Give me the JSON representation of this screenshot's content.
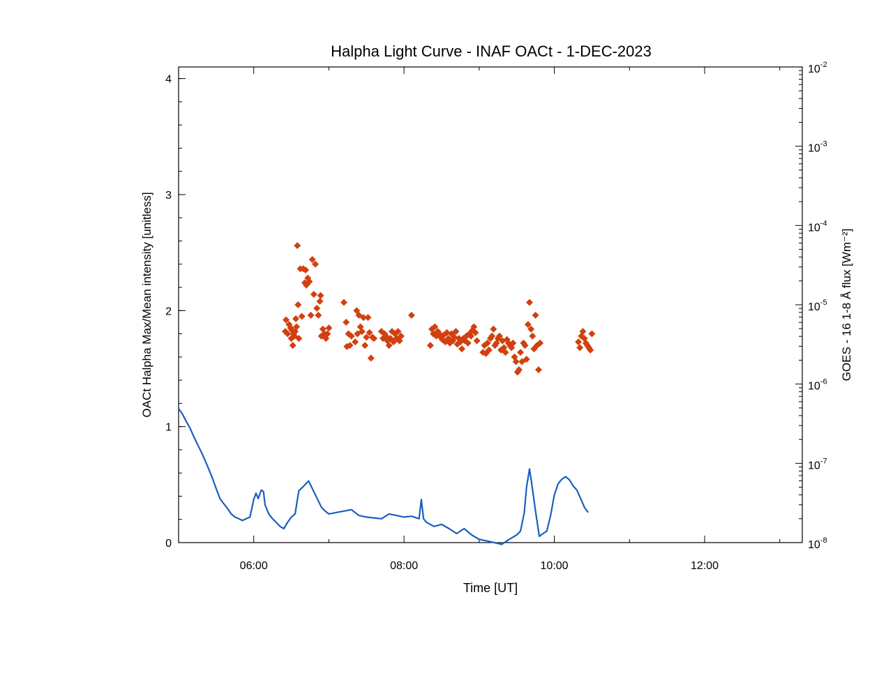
{
  "chart_data": {
    "type": "scatter",
    "title": "Halpha Light Curve - INAF OACt -  1-DEC-2023",
    "xlabel": "Time [UT]",
    "ylabel": "OACt Halpha Max/Mean intensity [unitless]",
    "y2label": "GOES - 16 1-8 Å flux [Wm⁻²]",
    "xlim": [
      5.0,
      13.3
    ],
    "ylim": [
      0,
      4.1
    ],
    "y2lim": [
      1e-08,
      0.01
    ],
    "y2scale": "log",
    "grid": false,
    "x_ticks": [
      {
        "value": 6,
        "label": "06:00"
      },
      {
        "value": 8,
        "label": "08:00"
      },
      {
        "value": 10,
        "label": "10:00"
      },
      {
        "value": 12,
        "label": "12:00"
      }
    ],
    "y_ticks": [
      {
        "value": 0,
        "label": "0"
      },
      {
        "value": 1,
        "label": "1"
      },
      {
        "value": 2,
        "label": "2"
      },
      {
        "value": 3,
        "label": "3"
      },
      {
        "value": 4,
        "label": "4"
      }
    ],
    "y2_ticks": [
      {
        "value": 1e-08,
        "base": "10",
        "exp": "-8"
      },
      {
        "value": 1e-07,
        "base": "10",
        "exp": "-7"
      },
      {
        "value": 1e-06,
        "base": "10",
        "exp": "-6"
      },
      {
        "value": 1e-05,
        "base": "10",
        "exp": "-5"
      },
      {
        "value": 0.0001,
        "base": "10",
        "exp": "-4"
      },
      {
        "value": 0.001,
        "base": "10",
        "exp": "-3"
      },
      {
        "value": 0.01,
        "base": "10",
        "exp": "-2"
      }
    ],
    "series": [
      {
        "color": "#d2400f",
        "marker": "diamond",
        "axis": "left",
        "points": [
          [
            6.42,
            1.82
          ],
          [
            6.43,
            1.92
          ],
          [
            6.45,
            1.8
          ],
          [
            6.47,
            1.88
          ],
          [
            6.49,
            1.85
          ],
          [
            6.5,
            1.76
          ],
          [
            6.51,
            1.83
          ],
          [
            6.52,
            1.7
          ],
          [
            6.53,
            1.8
          ],
          [
            6.54,
            1.78
          ],
          [
            6.55,
            1.82
          ],
          [
            6.56,
            1.93
          ],
          [
            6.57,
            1.86
          ],
          [
            6.58,
            2.56
          ],
          [
            6.59,
            2.05
          ],
          [
            6.6,
            1.76
          ],
          [
            6.62,
            2.36
          ],
          [
            6.64,
            1.95
          ],
          [
            6.66,
            2.36
          ],
          [
            6.68,
            2.24
          ],
          [
            6.69,
            2.35
          ],
          [
            6.7,
            2.22
          ],
          [
            6.72,
            2.28
          ],
          [
            6.74,
            2.25
          ],
          [
            6.76,
            1.96
          ],
          [
            6.78,
            2.44
          ],
          [
            6.8,
            2.14
          ],
          [
            6.82,
            2.4
          ],
          [
            6.84,
            2.02
          ],
          [
            6.86,
            1.96
          ],
          [
            6.88,
            2.08
          ],
          [
            6.89,
            2.13
          ],
          [
            6.9,
            1.78
          ],
          [
            6.92,
            1.84
          ],
          [
            6.94,
            1.8
          ],
          [
            6.96,
            1.76
          ],
          [
            6.98,
            1.8
          ],
          [
            7.0,
            1.85
          ],
          [
            7.2,
            2.07
          ],
          [
            7.23,
            1.9
          ],
          [
            7.24,
            1.69
          ],
          [
            7.26,
            1.8
          ],
          [
            7.28,
            1.7
          ],
          [
            7.3,
            1.78
          ],
          [
            7.35,
            1.73
          ],
          [
            7.37,
            2.0
          ],
          [
            7.38,
            1.8
          ],
          [
            7.4,
            1.96
          ],
          [
            7.42,
            1.86
          ],
          [
            7.44,
            1.82
          ],
          [
            7.46,
            1.94
          ],
          [
            7.48,
            1.7
          ],
          [
            7.5,
            1.77
          ],
          [
            7.52,
            1.94
          ],
          [
            7.54,
            1.81
          ],
          [
            7.56,
            1.59
          ],
          [
            7.58,
            1.77
          ],
          [
            7.6,
            1.76
          ],
          [
            7.7,
            1.82
          ],
          [
            7.72,
            1.76
          ],
          [
            7.74,
            1.8
          ],
          [
            7.76,
            1.78
          ],
          [
            7.78,
            1.74
          ],
          [
            7.8,
            1.7
          ],
          [
            7.82,
            1.76
          ],
          [
            7.84,
            1.82
          ],
          [
            7.86,
            1.73
          ],
          [
            7.88,
            1.8
          ],
          [
            7.9,
            1.76
          ],
          [
            7.92,
            1.82
          ],
          [
            7.94,
            1.74
          ],
          [
            7.96,
            1.78
          ],
          [
            8.1,
            1.96
          ],
          [
            8.35,
            1.7
          ],
          [
            8.37,
            1.84
          ],
          [
            8.39,
            1.8
          ],
          [
            8.41,
            1.86
          ],
          [
            8.43,
            1.78
          ],
          [
            8.45,
            1.82
          ],
          [
            8.47,
            1.8
          ],
          [
            8.49,
            1.77
          ],
          [
            8.51,
            1.75
          ],
          [
            8.53,
            1.79
          ],
          [
            8.55,
            1.73
          ],
          [
            8.57,
            1.81
          ],
          [
            8.59,
            1.76
          ],
          [
            8.61,
            1.72
          ],
          [
            8.63,
            1.8
          ],
          [
            8.65,
            1.74
          ],
          [
            8.67,
            1.77
          ],
          [
            8.69,
            1.82
          ],
          [
            8.71,
            1.71
          ],
          [
            8.73,
            1.76
          ],
          [
            8.75,
            1.73
          ],
          [
            8.77,
            1.67
          ],
          [
            8.79,
            1.76
          ],
          [
            8.81,
            1.74
          ],
          [
            8.83,
            1.78
          ],
          [
            8.85,
            1.72
          ],
          [
            8.87,
            1.8
          ],
          [
            8.89,
            1.78
          ],
          [
            8.91,
            1.83
          ],
          [
            8.93,
            1.86
          ],
          [
            8.95,
            1.81
          ],
          [
            8.97,
            1.74
          ],
          [
            9.05,
            1.64
          ],
          [
            9.07,
            1.7
          ],
          [
            9.09,
            1.63
          ],
          [
            9.11,
            1.72
          ],
          [
            9.13,
            1.66
          ],
          [
            9.15,
            1.76
          ],
          [
            9.17,
            1.78
          ],
          [
            9.19,
            1.84
          ],
          [
            9.21,
            1.7
          ],
          [
            9.23,
            1.72
          ],
          [
            9.25,
            1.76
          ],
          [
            9.27,
            1.78
          ],
          [
            9.29,
            1.66
          ],
          [
            9.31,
            1.74
          ],
          [
            9.33,
            1.68
          ],
          [
            9.35,
            1.64
          ],
          [
            9.37,
            1.75
          ],
          [
            9.39,
            1.72
          ],
          [
            9.41,
            1.7
          ],
          [
            9.43,
            1.68
          ],
          [
            9.45,
            1.72
          ],
          [
            9.47,
            1.6
          ],
          [
            9.49,
            1.56
          ],
          [
            9.51,
            1.47
          ],
          [
            9.53,
            1.49
          ],
          [
            9.55,
            1.64
          ],
          [
            9.57,
            1.56
          ],
          [
            9.59,
            1.72
          ],
          [
            9.61,
            1.7
          ],
          [
            9.63,
            1.58
          ],
          [
            9.65,
            1.88
          ],
          [
            9.67,
            2.07
          ],
          [
            9.69,
            1.84
          ],
          [
            9.71,
            1.78
          ],
          [
            9.73,
            1.67
          ],
          [
            9.75,
            1.96
          ],
          [
            9.77,
            1.7
          ],
          [
            9.79,
            1.49
          ],
          [
            9.81,
            1.72
          ],
          [
            10.32,
            1.73
          ],
          [
            10.34,
            1.68
          ],
          [
            10.36,
            1.78
          ],
          [
            10.38,
            1.82
          ],
          [
            10.4,
            1.76
          ],
          [
            10.42,
            1.72
          ],
          [
            10.44,
            1.7
          ],
          [
            10.46,
            1.68
          ],
          [
            10.48,
            1.66
          ],
          [
            10.5,
            1.8
          ]
        ]
      },
      {
        "color": "#1a5ebf",
        "marker": "line",
        "axis": "right",
        "points": [
          [
            5.0,
            4.9e-07
          ],
          [
            5.05,
            4.2e-07
          ],
          [
            5.1,
            3.4e-07
          ],
          [
            5.15,
            2.8e-07
          ],
          [
            5.2,
            2.2e-07
          ],
          [
            5.25,
            1.75e-07
          ],
          [
            5.3,
            1.4e-07
          ],
          [
            5.35,
            1.1e-07
          ],
          [
            5.4,
            8.5e-08
          ],
          [
            5.45,
            6.5e-08
          ],
          [
            5.5,
            4.8e-08
          ],
          [
            5.55,
            3.6e-08
          ],
          [
            5.6,
            3.1e-08
          ],
          [
            5.65,
            2.7e-08
          ],
          [
            5.7,
            2.3e-08
          ],
          [
            5.75,
            2.1e-08
          ],
          [
            5.8,
            2e-08
          ],
          [
            5.85,
            1.9e-08
          ],
          [
            5.9,
            2e-08
          ],
          [
            5.95,
            2.1e-08
          ],
          [
            6.0,
            3.5e-08
          ],
          [
            6.03,
            4.2e-08
          ],
          [
            6.06,
            3.6e-08
          ],
          [
            6.1,
            4.6e-08
          ],
          [
            6.13,
            4.4e-08
          ],
          [
            6.15,
            3e-08
          ],
          [
            6.2,
            2.3e-08
          ],
          [
            6.25,
            2e-08
          ],
          [
            6.3,
            1.8e-08
          ],
          [
            6.35,
            1.6e-08
          ],
          [
            6.4,
            1.5e-08
          ],
          [
            6.45,
            1.8e-08
          ],
          [
            6.5,
            2.1e-08
          ],
          [
            6.55,
            2.3e-08
          ],
          [
            6.6,
            4.5e-08
          ],
          [
            6.65,
            5e-08
          ],
          [
            6.7,
            5.6e-08
          ],
          [
            6.73,
            6e-08
          ],
          [
            6.78,
            4.8e-08
          ],
          [
            6.85,
            3.5e-08
          ],
          [
            6.9,
            2.8e-08
          ],
          [
            6.95,
            2.5e-08
          ],
          [
            7.0,
            2.3e-08
          ],
          [
            7.1,
            2.4e-08
          ],
          [
            7.2,
            2.5e-08
          ],
          [
            7.3,
            2.6e-08
          ],
          [
            7.4,
            2.2e-08
          ],
          [
            7.5,
            2.1e-08
          ],
          [
            7.6,
            2.05e-08
          ],
          [
            7.7,
            2e-08
          ],
          [
            7.8,
            2.3e-08
          ],
          [
            7.9,
            2.2e-08
          ],
          [
            8.0,
            2.1e-08
          ],
          [
            8.1,
            2.15e-08
          ],
          [
            8.2,
            2e-08
          ],
          [
            8.23,
            3.5e-08
          ],
          [
            8.26,
            2e-08
          ],
          [
            8.3,
            1.8e-08
          ],
          [
            8.4,
            1.6e-08
          ],
          [
            8.5,
            1.7e-08
          ],
          [
            8.6,
            1.5e-08
          ],
          [
            8.7,
            1.3e-08
          ],
          [
            8.8,
            1.5e-08
          ],
          [
            8.9,
            1.25e-08
          ],
          [
            9.0,
            1.1e-08
          ],
          [
            9.1,
            1.05e-08
          ],
          [
            9.2,
            1e-08
          ],
          [
            9.3,
            9.5e-09
          ],
          [
            9.4,
            1.1e-08
          ],
          [
            9.5,
            1.25e-08
          ],
          [
            9.55,
            1.4e-08
          ],
          [
            9.6,
            2.4e-08
          ],
          [
            9.63,
            5e-08
          ],
          [
            9.67,
            8.5e-08
          ],
          [
            9.7,
            5.5e-08
          ],
          [
            9.75,
            2.5e-08
          ],
          [
            9.8,
            1.2e-08
          ],
          [
            9.85,
            1.3e-08
          ],
          [
            9.9,
            1.4e-08
          ],
          [
            9.95,
            2.2e-08
          ],
          [
            10.0,
            4e-08
          ],
          [
            10.05,
            5.5e-08
          ],
          [
            10.1,
            6.3e-08
          ],
          [
            10.15,
            6.8e-08
          ],
          [
            10.2,
            6.2e-08
          ],
          [
            10.25,
            5.2e-08
          ],
          [
            10.3,
            4.6e-08
          ],
          [
            10.35,
            3.6e-08
          ],
          [
            10.4,
            2.8e-08
          ],
          [
            10.45,
            2.4e-08
          ]
        ]
      }
    ]
  }
}
